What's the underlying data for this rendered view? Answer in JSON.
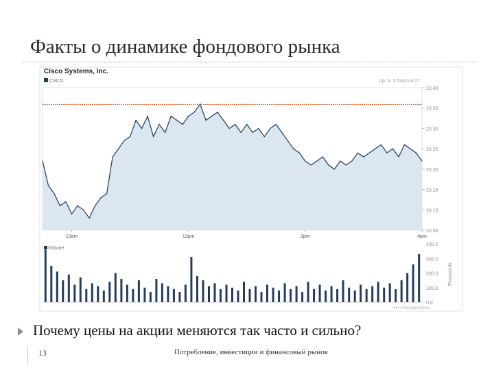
{
  "slide": {
    "title": "Факты о динамике фондового рынка",
    "question": "Почему цены на акции меняются так часто и сильно?",
    "page_number": "13",
    "footer": "Потребление, инвестиции и финансовый рынок"
  },
  "colors": {
    "line": "#1f3b5a",
    "area": "#dbe6f0",
    "previous_close": "#e06020",
    "volume_bar": "#243b5c",
    "axis_text": "#888888"
  },
  "chart_data": [
    {
      "type": "area",
      "title": "Cisco Systems, Inc.",
      "ticker": "CSCO",
      "timestamp": "Apr 8, 3:59pm EDT",
      "x_ticks": [
        "10am",
        "12pm",
        "2pm",
        "4pm"
      ],
      "y_ticks": [
        "20.40",
        "20.35",
        "20.30",
        "20.25",
        "20.20",
        "20.15",
        "20.10",
        "20.05"
      ],
      "ylim": [
        20.05,
        20.4
      ],
      "previous_close": 20.359,
      "legend": [
        "Previous Close"
      ],
      "x": [
        9.5,
        9.6,
        9.7,
        9.8,
        9.9,
        10.0,
        10.1,
        10.2,
        10.3,
        10.4,
        10.5,
        10.6,
        10.7,
        10.8,
        10.9,
        11.0,
        11.1,
        11.2,
        11.3,
        11.4,
        11.5,
        11.6,
        11.7,
        11.8,
        11.9,
        12.0,
        12.1,
        12.2,
        12.3,
        12.4,
        12.5,
        12.6,
        12.7,
        12.8,
        12.9,
        13.0,
        13.1,
        13.2,
        13.3,
        13.4,
        13.5,
        13.6,
        13.7,
        13.8,
        13.9,
        14.0,
        14.1,
        14.2,
        14.3,
        14.4,
        14.5,
        14.6,
        14.7,
        14.8,
        14.9,
        15.0,
        15.1,
        15.2,
        15.3,
        15.4,
        15.5,
        15.6,
        15.7,
        15.8,
        15.9,
        16.0
      ],
      "y": [
        20.22,
        20.16,
        20.14,
        20.11,
        20.12,
        20.09,
        20.11,
        20.1,
        20.08,
        20.11,
        20.13,
        20.14,
        20.23,
        20.25,
        20.27,
        20.28,
        20.32,
        20.3,
        20.33,
        20.28,
        20.31,
        20.29,
        20.33,
        20.32,
        20.31,
        20.33,
        20.34,
        20.36,
        20.32,
        20.33,
        20.34,
        20.32,
        20.3,
        20.31,
        20.29,
        20.31,
        20.29,
        20.3,
        20.28,
        20.3,
        20.31,
        20.29,
        20.27,
        20.25,
        20.24,
        20.22,
        20.21,
        20.22,
        20.23,
        20.21,
        20.2,
        20.22,
        20.21,
        20.22,
        20.24,
        20.23,
        20.24,
        20.25,
        20.26,
        20.24,
        20.25,
        20.23,
        20.26,
        20.25,
        20.24,
        20.22
      ]
    },
    {
      "type": "bar",
      "title": "Volume",
      "y_ticks": [
        "400.0",
        "300.0",
        "200.0",
        "100.0",
        "0.0"
      ],
      "ylim": [
        0,
        400
      ],
      "ylabel": "Thousands",
      "x": [
        9.55,
        9.65,
        9.75,
        9.85,
        9.95,
        10.05,
        10.15,
        10.25,
        10.35,
        10.45,
        10.55,
        10.65,
        10.75,
        10.85,
        10.95,
        11.05,
        11.15,
        11.25,
        11.35,
        11.45,
        11.55,
        11.65,
        11.75,
        11.85,
        11.95,
        12.05,
        12.15,
        12.25,
        12.35,
        12.45,
        12.55,
        12.65,
        12.75,
        12.85,
        12.95,
        13.05,
        13.15,
        13.25,
        13.35,
        13.45,
        13.55,
        13.65,
        13.75,
        13.85,
        13.95,
        14.05,
        14.15,
        14.25,
        14.35,
        14.45,
        14.55,
        14.65,
        14.75,
        14.85,
        14.95,
        15.05,
        15.15,
        15.25,
        15.35,
        15.45,
        15.55,
        15.65,
        15.75,
        15.85,
        15.95
      ],
      "values": [
        360,
        250,
        210,
        150,
        190,
        120,
        170,
        90,
        130,
        110,
        80,
        140,
        200,
        160,
        120,
        90,
        150,
        100,
        70,
        160,
        130,
        110,
        90,
        70,
        120,
        310,
        180,
        150,
        110,
        130,
        90,
        120,
        100,
        80,
        140,
        90,
        110,
        70,
        120,
        100,
        80,
        130,
        90,
        110,
        70,
        140,
        90,
        120,
        80,
        110,
        90,
        150,
        100,
        80,
        120,
        90,
        110,
        140,
        100,
        130,
        90,
        150,
        200,
        260,
        330
      ]
    }
  ]
}
